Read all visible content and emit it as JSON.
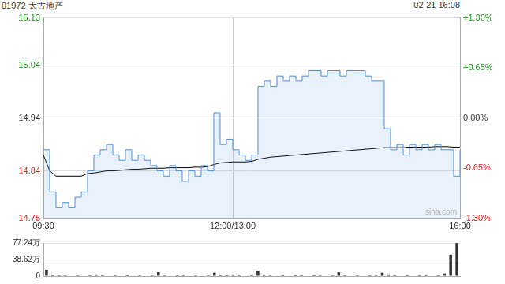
{
  "chart_data": [
    {
      "type": "line",
      "title": "01972 太古地产",
      "subtitle": "02-21 16:08",
      "annotations": [
        "sina.com"
      ],
      "categories": [
        "09:30",
        null,
        null,
        null,
        null,
        null,
        null,
        null,
        null,
        null,
        null,
        null,
        null,
        null,
        null,
        null,
        null,
        null,
        null,
        null,
        null,
        null,
        null,
        null,
        null,
        null,
        null,
        null,
        null,
        null,
        "12:00/13:00",
        null,
        null,
        null,
        null,
        null,
        null,
        null,
        null,
        null,
        null,
        null,
        null,
        null,
        null,
        null,
        null,
        null,
        null,
        null,
        null,
        null,
        null,
        null,
        null,
        null,
        null,
        null,
        null,
        null,
        null,
        null,
        null,
        null,
        null,
        null,
        "16:00"
      ],
      "series": [
        {
          "color": "#4a8fe0",
          "values": [
            14.88,
            14.8,
            14.77,
            14.78,
            14.77,
            14.79,
            14.8,
            14.84,
            14.87,
            14.88,
            14.89,
            14.87,
            14.86,
            14.88,
            14.86,
            14.87,
            14.86,
            14.85,
            14.84,
            14.83,
            14.85,
            14.84,
            14.82,
            14.84,
            14.83,
            14.85,
            14.84,
            14.95,
            14.89,
            14.9,
            14.88,
            14.87,
            14.86,
            14.87,
            15,
            15.01,
            15,
            15.02,
            15.01,
            15.02,
            15.01,
            15.02,
            15.03,
            15.03,
            15.02,
            15.03,
            15.03,
            15.02,
            15.03,
            15.03,
            15.03,
            15.02,
            15.01,
            15.01,
            14.92,
            14.88,
            14.89,
            14.87,
            14.89,
            14.88,
            14.89,
            14.88,
            14.89,
            14.88,
            14.88,
            14.83,
            14.88
          ]
        },
        {
          "color": "#000000",
          "values": [
            14.87,
            14.84,
            14.83,
            14.83,
            14.83,
            14.83,
            14.83,
            14.835,
            14.836,
            14.838,
            14.84,
            14.84,
            14.841,
            14.842,
            14.843,
            14.843,
            14.844,
            14.845,
            14.845,
            14.845,
            14.846,
            14.846,
            14.846,
            14.846,
            14.847,
            14.847,
            14.848,
            14.852,
            14.855,
            14.856,
            14.857,
            14.857,
            14.857,
            14.858,
            14.862,
            14.864,
            14.866,
            14.867,
            14.868,
            14.869,
            14.87,
            14.871,
            14.872,
            14.873,
            14.874,
            14.875,
            14.876,
            14.877,
            14.878,
            14.879,
            14.88,
            14.881,
            14.882,
            14.883,
            14.884,
            14.884,
            14.884,
            14.884,
            14.885,
            14.885,
            14.885,
            14.885,
            14.886,
            14.886,
            14.886,
            14.885,
            14.885
          ]
        }
      ],
      "ylim": [
        14.75,
        15.13
      ],
      "yticks": [
        14.75,
        14.84,
        14.94,
        15.04,
        15.13
      ],
      "y2lim": [
        -1.3,
        1.3
      ],
      "y2ticks": [
        {
          "value": -1.3,
          "label": "-1.30%"
        },
        {
          "value": -0.65,
          "label": "-0.65%"
        },
        {
          "value": 0,
          "label": "0.00%"
        },
        {
          "value": 0.65,
          "label": "+0.65%"
        },
        {
          "value": 1.3,
          "label": "+1.30%"
        }
      ],
      "grid": true
    },
    {
      "type": "bar",
      "categories": [
        "09:30",
        null,
        null,
        null,
        null,
        null,
        null,
        null,
        null,
        null,
        null,
        null,
        null,
        null,
        null,
        null,
        null,
        null,
        null,
        null,
        null,
        null,
        null,
        null,
        null,
        null,
        null,
        null,
        null,
        null,
        "12:00/13:00",
        null,
        null,
        null,
        null,
        null,
        null,
        null,
        null,
        null,
        null,
        null,
        null,
        null,
        null,
        null,
        null,
        null,
        null,
        null,
        null,
        null,
        null,
        null,
        null,
        null,
        null,
        null,
        null,
        null,
        null,
        null,
        null,
        null,
        null,
        null,
        "16:00"
      ],
      "values": [
        15,
        3,
        2,
        2,
        1,
        2,
        1,
        3,
        4,
        2,
        1,
        2,
        1,
        3,
        1,
        2,
        1,
        2,
        9,
        2,
        1,
        2,
        3,
        1,
        2,
        1,
        2,
        8,
        3,
        2,
        4,
        2,
        1,
        3,
        12,
        3,
        2,
        1,
        2,
        1,
        3,
        2,
        1,
        2,
        3,
        1,
        2,
        9,
        2,
        1,
        2,
        1,
        2,
        3,
        8,
        4,
        2,
        1,
        2,
        1,
        3,
        2,
        1,
        2,
        6,
        50,
        77
      ],
      "color": "#333333",
      "ylim": [
        0,
        77.24
      ],
      "yticks": [
        0,
        {
          "value": 38.62,
          "label": "38.62万"
        },
        {
          "value": 77.24,
          "label": "77.24万"
        }
      ],
      "tick_labels": "y",
      "grid": true
    }
  ]
}
